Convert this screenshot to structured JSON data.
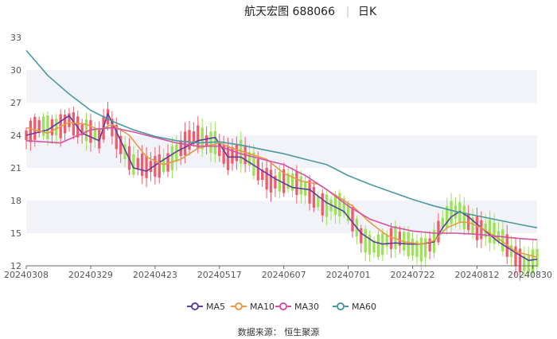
{
  "chart_data": {
    "type": "line",
    "title_left": "航天宏图 688066",
    "title_right": "日K",
    "ylim": [
      12,
      33
    ],
    "y_ticks": [
      12,
      15,
      18,
      21,
      24,
      27,
      30,
      33
    ],
    "x_tick_labels": [
      "20240308",
      "20240329",
      "20240423",
      "20240517",
      "20240607",
      "20240701",
      "20240722",
      "20240812",
      "20240830"
    ],
    "x_tick_index": [
      0,
      15,
      30,
      45,
      60,
      75,
      90,
      105,
      118
    ],
    "n_days": 120,
    "grid": "horizontal bands",
    "legend_position": "bottom",
    "candle_colors": {
      "up": "#f15b6c",
      "down": "#9ce157"
    },
    "series": [
      {
        "name": "MA5",
        "color": "#5b3f9e",
        "x": [
          0,
          5,
          10,
          13,
          17,
          19,
          22,
          25,
          28,
          31,
          35,
          40,
          44,
          47,
          50,
          54,
          58,
          62,
          66,
          70,
          74,
          78,
          81,
          83,
          86,
          89,
          92,
          95,
          97,
          99,
          101,
          103,
          106,
          110,
          114,
          117,
          119
        ],
        "values": [
          24.0,
          24.5,
          25.8,
          24.2,
          23.5,
          26.0,
          23.5,
          21.0,
          20.7,
          21.5,
          22.5,
          23.5,
          23.8,
          22.0,
          22.0,
          21.0,
          20.0,
          19.2,
          19.0,
          17.8,
          17.0,
          15.0,
          14.2,
          14.0,
          14.1,
          14.0,
          14.0,
          14.2,
          15.5,
          16.5,
          17.0,
          16.5,
          15.5,
          14.2,
          13.2,
          12.5,
          12.6
        ]
      },
      {
        "name": "MA10",
        "color": "#e69a42",
        "x": [
          0,
          5,
          10,
          14,
          17,
          20,
          24,
          28,
          32,
          36,
          40,
          45,
          48,
          52,
          56,
          60,
          64,
          68,
          72,
          76,
          80,
          84,
          88,
          92,
          95,
          98,
          101,
          103,
          106,
          110,
          114,
          119
        ],
        "values": [
          24.7,
          24.2,
          25.2,
          25.0,
          24.5,
          25.0,
          24.0,
          22.0,
          21.3,
          21.8,
          22.8,
          23.3,
          22.8,
          22.3,
          21.8,
          20.5,
          19.8,
          19.5,
          18.5,
          17.5,
          16.0,
          14.8,
          14.2,
          14.0,
          14.3,
          15.5,
          16.0,
          16.0,
          15.5,
          14.5,
          13.3,
          12.8
        ]
      },
      {
        "name": "MA30",
        "color": "#d451a6",
        "x": [
          0,
          8,
          15,
          20,
          25,
          30,
          35,
          40,
          45,
          50,
          55,
          60,
          65,
          70,
          75,
          80,
          85,
          90,
          95,
          100,
          105,
          110,
          115,
          119
        ],
        "values": [
          23.5,
          23.3,
          24.5,
          24.7,
          24.3,
          23.8,
          23.3,
          23.0,
          23.0,
          22.3,
          21.8,
          21.3,
          20.3,
          19.0,
          17.5,
          16.3,
          15.6,
          15.2,
          15.0,
          15.0,
          14.9,
          14.7,
          14.5,
          14.4
        ]
      },
      {
        "name": "MA60",
        "color": "#4b9a9f",
        "x": [
          0,
          5,
          10,
          15,
          20,
          25,
          30,
          35,
          40,
          45,
          50,
          55,
          60,
          65,
          70,
          75,
          80,
          85,
          90,
          95,
          100,
          105,
          110,
          115,
          119
        ],
        "values": [
          31.8,
          29.5,
          27.8,
          26.3,
          25.3,
          24.5,
          23.9,
          23.5,
          23.3,
          23.4,
          23.1,
          22.7,
          22.3,
          21.8,
          21.3,
          20.3,
          19.5,
          18.8,
          18.1,
          17.5,
          17.0,
          16.6,
          16.2,
          15.8,
          15.5
        ]
      }
    ]
  },
  "legend": {
    "items": [
      "MA5",
      "MA10",
      "MA30",
      "MA60"
    ]
  },
  "source": "数据来源： 恒生聚源"
}
